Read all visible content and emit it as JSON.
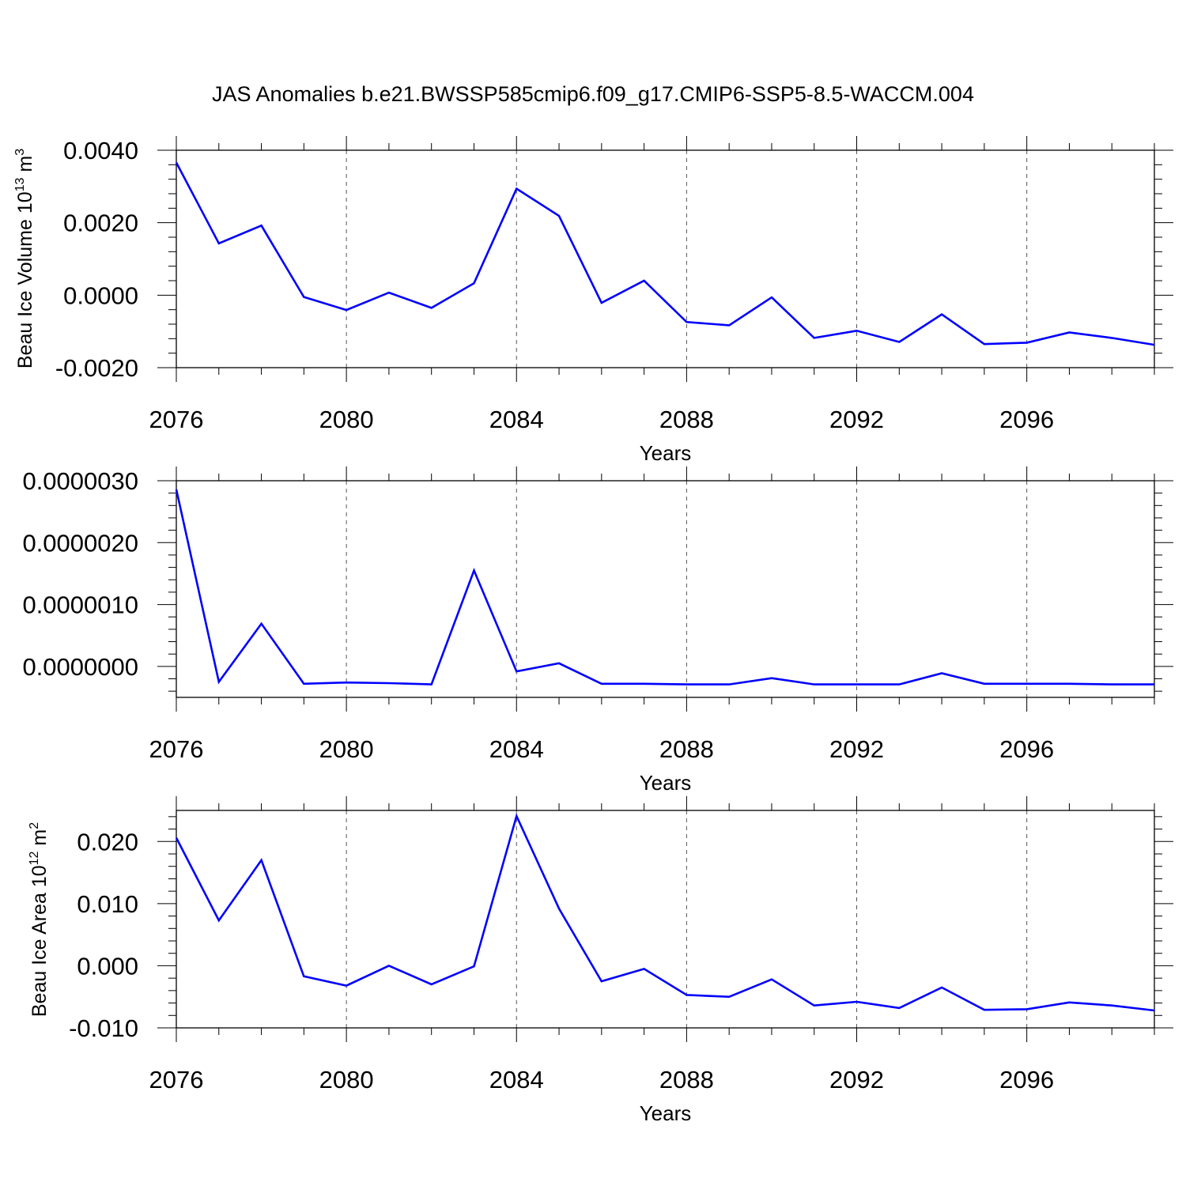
{
  "title": "JAS Anomalies b.e21.BWSSP585cmip6.f09_g17.CMIP6-SSP5-8.5-WACCM.004",
  "line_color": "#0000ff",
  "chart_data": [
    {
      "type": "line",
      "ylabel": "Beau Ice Volume 10",
      "ylabel_sup": "13",
      "ylabel_unit": " m",
      "ylabel_unit_sup": "3",
      "xlabel": "Years",
      "xlim": [
        2076,
        2099
      ],
      "ylim": [
        -0.002,
        0.004
      ],
      "yticks": [
        -0.002,
        0.0,
        0.002,
        0.004
      ],
      "ytick_labels": [
        "-0.0020",
        "0.0000",
        "0.0020",
        "0.0040"
      ],
      "yminor_step": 0.0004,
      "xticks": [
        2076,
        2080,
        2084,
        2088,
        2092,
        2096
      ],
      "xtick_labels": [
        "2076",
        "2080",
        "2084",
        "2088",
        "2092",
        "2096"
      ],
      "x": [
        2076,
        2077,
        2078,
        2079,
        2080,
        2081,
        2082,
        2083,
        2084,
        2085,
        2086,
        2087,
        2088,
        2089,
        2090,
        2091,
        2092,
        2093,
        2094,
        2095,
        2096,
        2097,
        2098,
        2099
      ],
      "values": [
        0.00366,
        0.00143,
        0.00192,
        -5e-05,
        -0.00041,
        7e-05,
        -0.00035,
        0.00033,
        0.00294,
        0.00219,
        -0.00021,
        0.0004,
        -0.00074,
        -0.00083,
        -6e-05,
        -0.00118,
        -0.00098,
        -0.00129,
        -0.00053,
        -0.00135,
        -0.00131,
        -0.00103,
        -0.00118,
        -0.00137
      ]
    },
    {
      "type": "line",
      "ylabel": "",
      "xlabel": "Years",
      "xlim": [
        2076,
        2099
      ],
      "ylim": [
        -5e-07,
        3e-06
      ],
      "yticks": [
        0.0,
        1e-06,
        2e-06,
        3e-06
      ],
      "ytick_labels": [
        "0.0000000",
        "0.0000010",
        "0.0000020",
        "0.0000030"
      ],
      "yminor_step": 2e-07,
      "xticks": [
        2076,
        2080,
        2084,
        2088,
        2092,
        2096
      ],
      "xtick_labels": [
        "2076",
        "2080",
        "2084",
        "2088",
        "2092",
        "2096"
      ],
      "x": [
        2076,
        2077,
        2078,
        2079,
        2080,
        2081,
        2082,
        2083,
        2084,
        2085,
        2086,
        2087,
        2088,
        2089,
        2090,
        2091,
        2092,
        2093,
        2094,
        2095,
        2096,
        2097,
        2098,
        2099
      ],
      "values": [
        2.86e-06,
        -2.5e-07,
        6.9e-07,
        -2.8e-07,
        -2.6e-07,
        -2.7e-07,
        -2.9e-07,
        1.55e-06,
        -8e-08,
        5e-08,
        -2.8e-07,
        -2.8e-07,
        -2.9e-07,
        -2.9e-07,
        -1.9e-07,
        -2.9e-07,
        -2.9e-07,
        -2.9e-07,
        -1.1e-07,
        -2.8e-07,
        -2.8e-07,
        -2.8e-07,
        -2.9e-07,
        -2.9e-07
      ]
    },
    {
      "type": "line",
      "ylabel": "Beau Ice Area 10",
      "ylabel_sup": "12",
      "ylabel_unit": " m",
      "ylabel_unit_sup": "2",
      "xlabel": "Years",
      "xlim": [
        2076,
        2099
      ],
      "ylim": [
        -0.01,
        0.025
      ],
      "yticks": [
        -0.01,
        0.0,
        0.01,
        0.02
      ],
      "ytick_labels": [
        "-0.010",
        "0.000",
        "0.010",
        "0.020"
      ],
      "yminor_step": 0.002,
      "xticks": [
        2076,
        2080,
        2084,
        2088,
        2092,
        2096
      ],
      "xtick_labels": [
        "2076",
        "2080",
        "2084",
        "2088",
        "2092",
        "2096"
      ],
      "x": [
        2076,
        2077,
        2078,
        2079,
        2080,
        2081,
        2082,
        2083,
        2084,
        2085,
        2086,
        2087,
        2088,
        2089,
        2090,
        2091,
        2092,
        2093,
        2094,
        2095,
        2096,
        2097,
        2098,
        2099
      ],
      "values": [
        0.0206,
        0.0073,
        0.017,
        -0.0017,
        -0.0032,
        0.0,
        -0.003,
        -0.0001,
        0.0241,
        0.0092,
        -0.0025,
        -0.0005,
        -0.0047,
        -0.005,
        -0.0022,
        -0.0064,
        -0.0058,
        -0.0068,
        -0.0035,
        -0.0071,
        -0.007,
        -0.0059,
        -0.0064,
        -0.0072
      ]
    }
  ]
}
